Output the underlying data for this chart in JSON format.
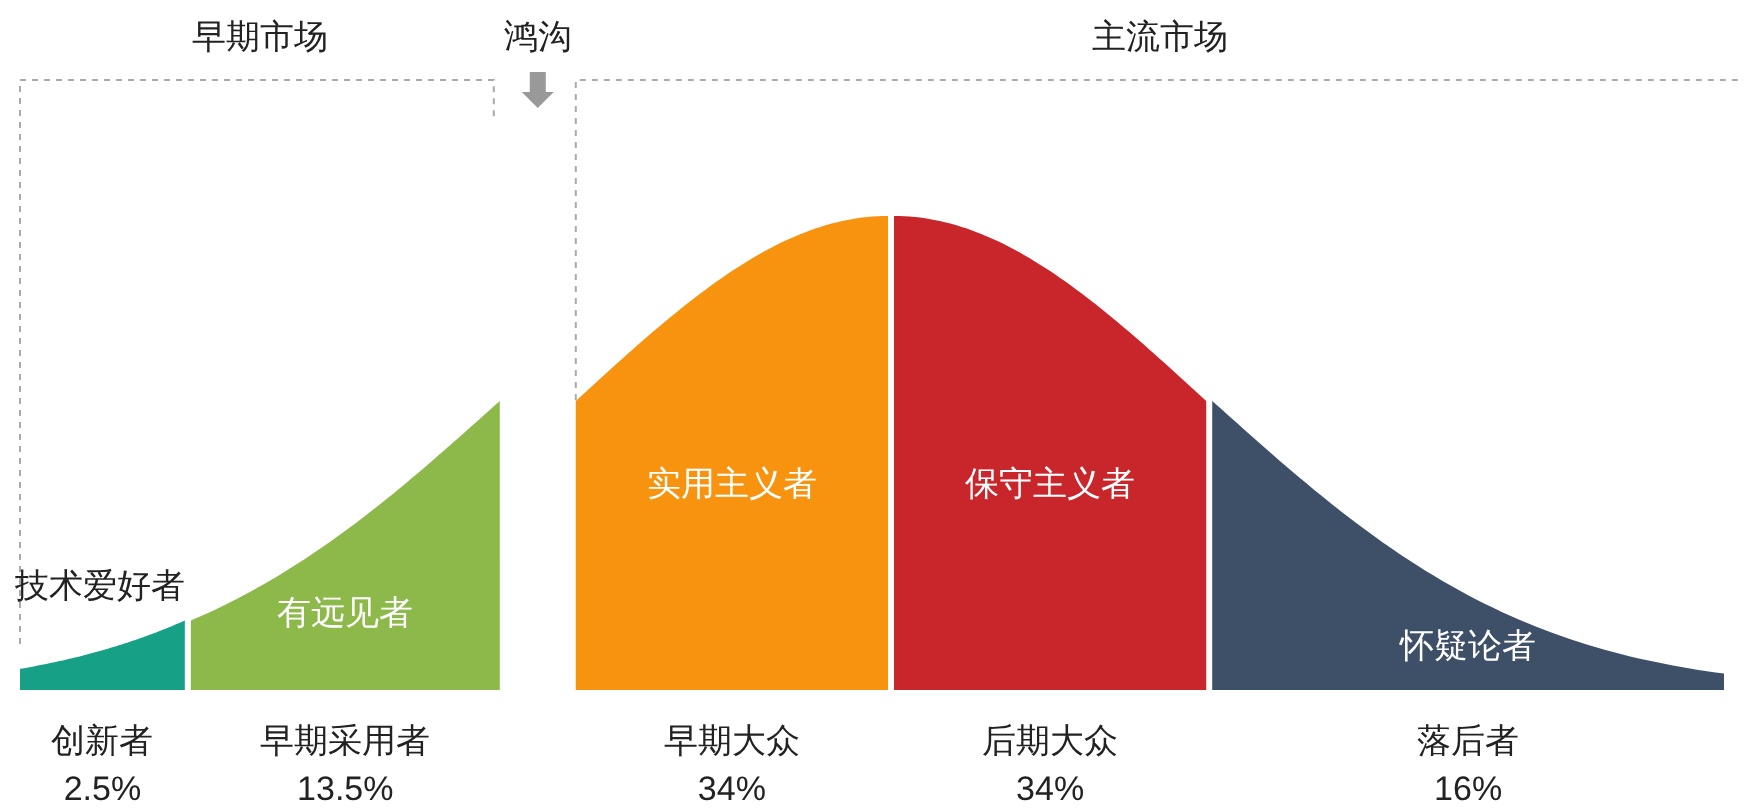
{
  "chart_data": {
    "type": "other",
    "categories": [
      "创新者",
      "早期采用者",
      "早期大众",
      "后期大众",
      "落后者"
    ],
    "values": [
      2.5,
      13.5,
      34,
      34,
      16
    ],
    "value_labels": [
      "2.5%",
      "13.5%",
      "34%",
      "34%",
      "16%"
    ],
    "colors": [
      "#16a085",
      "#8cb94a",
      "#f7930f",
      "#c8262b",
      "#3e5068"
    ],
    "annotations": [
      {
        "text": "技术爱好者",
        "x": "创新者"
      },
      {
        "text": "有远见者",
        "x": "早期采用者"
      },
      {
        "text": "实用主义者",
        "x": "早期大众"
      },
      {
        "text": "保守主义者",
        "x": "后期大众"
      },
      {
        "text": "怀疑论者",
        "x": "落后者"
      },
      "早期市场",
      "鸿沟",
      "主流市场"
    ]
  }
}
